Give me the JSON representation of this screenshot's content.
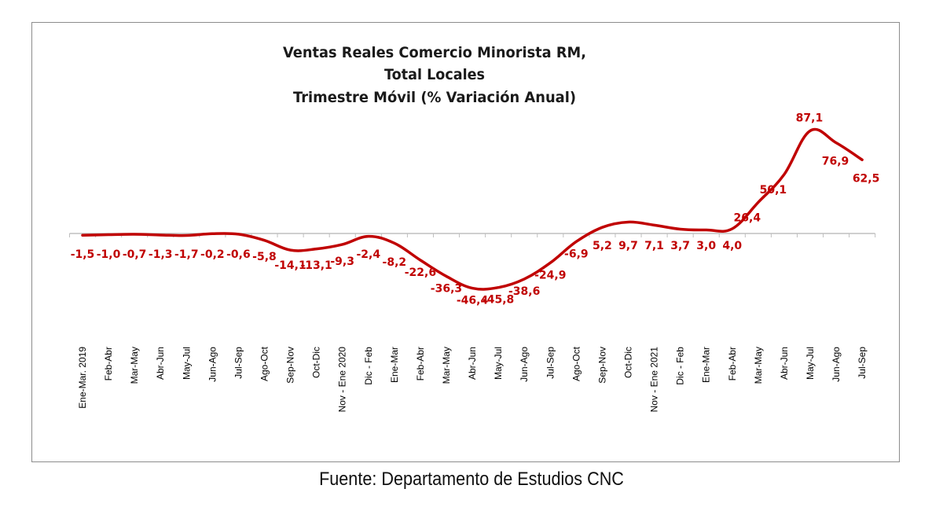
{
  "source_note": "Fuente: Departamento de Estudios CNC",
  "colors": {
    "line": "#c00000",
    "labels": "#c00000",
    "axis": "#bfbfbf",
    "title": "#1a1a1a"
  },
  "chart_data": {
    "type": "line",
    "title": [
      "Ventas Reales Comercio Minorista RM,",
      "Total Locales",
      "Trimestre Móvil (% Variación Anual)"
    ],
    "xlabel": "",
    "ylabel": "",
    "grid": false,
    "legend": "none",
    "categories": [
      "Ene-Mar. 2019",
      "Feb-Abr",
      "Mar-May",
      "Abr-Jun",
      "May-Jul",
      "Jun-Ago",
      "Jul-Sep",
      "Ago-Oct",
      "Sep-Nov",
      "Oct-Dic",
      "Nov - Ene 2020",
      "Dic - Feb",
      "Ene-Mar",
      "Feb-Abr",
      "Mar-May",
      "Abr-Jun",
      "May-Jul",
      "Jun-Ago",
      "Jul-Sep",
      "Ago-Oct",
      "Sep-Nov",
      "Oct-Dic",
      "Nov - Ene 2021",
      "Dic - Feb",
      "Ene-Mar",
      "Feb-Abr",
      "Mar-May",
      "Abr-Jun",
      "May-Jul",
      "Jun-Ago",
      "Jul-Sep"
    ],
    "values": [
      -1.5,
      -1.0,
      -0.7,
      -1.3,
      -1.7,
      -0.2,
      -0.6,
      -5.8,
      -14.1,
      -13.1,
      -9.3,
      -2.4,
      -8.2,
      -22.6,
      -36.3,
      -46.4,
      -45.8,
      -38.6,
      -24.9,
      -6.9,
      5.2,
      9.7,
      7.1,
      3.7,
      3.0,
      4.0,
      26.4,
      50.1,
      87.1,
      76.9,
      62.5
    ],
    "data_labels": [
      "-1,5",
      "-1,0",
      "-0,7",
      "-1,3",
      "-1,7",
      "-0,2",
      "-0,6",
      "-5,8",
      "-14,1",
      "-13,1",
      "-9,3",
      "-2,4",
      "-8,2",
      "-22,6",
      "-36,3",
      "-46,4",
      "-45,8",
      "-38,6",
      "-24,9",
      "-6,9",
      "5,2",
      "9,7",
      "7,1",
      "3,7",
      "3,0",
      "4,0",
      "26,4",
      "50,1",
      "87,1",
      "76,9",
      "62,5"
    ],
    "ylim": [
      -50,
      90
    ]
  }
}
